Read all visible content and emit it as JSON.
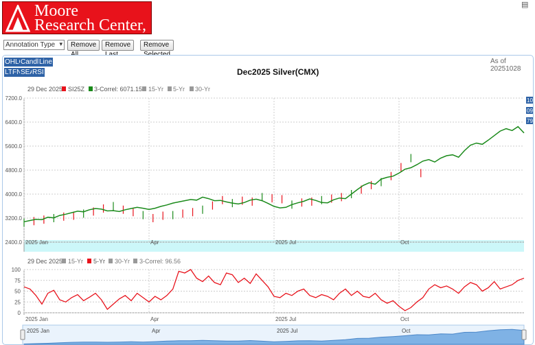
{
  "header": {
    "logo": {
      "line1": "Moore",
      "line2": "Research Center, Inc."
    }
  },
  "controls": {
    "annotation_select": "Annotation Type",
    "remove_all": "Remove All",
    "remove_last": "Remove Last",
    "remove_selected": "Remove Selected"
  },
  "chart_type_buttons": [
    "OHLC",
    "Candle",
    "Line",
    "LT",
    "FN",
    "SEA",
    "RSI"
  ],
  "as_of": "As of 20251028",
  "right_badges": [
    "10",
    "09",
    "79"
  ],
  "chart_data": [
    {
      "type": "line",
      "title": "Dec2025 Silver(CMX)",
      "legend": [
        "29 Dec 2025",
        "SI25Z",
        "3-Correl: 6071.15",
        "15-Yr",
        "5-Yr",
        "30-Yr"
      ],
      "legend_colors": {
        "SI25Z": "#e8121b",
        "3-Correl": "#1a8a1a",
        "15-Yr": "#999999",
        "5-Yr": "#999999",
        "30-Yr": "#999999"
      },
      "y_ticks": [
        "7200.0",
        "6400.0",
        "5600.0",
        "4800.0",
        "4000.0",
        "3200.0",
        "2400.0"
      ],
      "ylim": [
        2400,
        7200
      ],
      "x_labels": [
        "2025 Jan",
        "Apr",
        "2025 Jul",
        "Oct"
      ],
      "series": [
        {
          "name": "3-Correl",
          "x": [
            0,
            3,
            6,
            9,
            12,
            15,
            18,
            21,
            24,
            27,
            30,
            33,
            36,
            39,
            42,
            45,
            48,
            51,
            54,
            57,
            60,
            63,
            66,
            69,
            72,
            75,
            78,
            81,
            84,
            87,
            90,
            93,
            96,
            99,
            102,
            105,
            108,
            111,
            114,
            117,
            120,
            123,
            126,
            129,
            132,
            135,
            138,
            141,
            144,
            147,
            150,
            153,
            156,
            159,
            162,
            165,
            168,
            171,
            174,
            177,
            180,
            183,
            186,
            189,
            192,
            195,
            198,
            201,
            204,
            207,
            210,
            213,
            216,
            219,
            222,
            225,
            228,
            231,
            234,
            237,
            240,
            243,
            246,
            249,
            252
          ],
          "values": [
            3080,
            3120,
            3160,
            3150,
            3230,
            3210,
            3290,
            3330,
            3380,
            3430,
            3410,
            3480,
            3520,
            3500,
            3440,
            3450,
            3420,
            3480,
            3520,
            3560,
            3530,
            3490,
            3530,
            3590,
            3640,
            3700,
            3740,
            3780,
            3820,
            3800,
            3900,
            3850,
            3780,
            3790,
            3740,
            3700,
            3670,
            3720,
            3800,
            3830,
            3780,
            3690,
            3590,
            3540,
            3560,
            3650,
            3710,
            3760,
            3840,
            3790,
            3720,
            3710,
            3810,
            3870,
            3850,
            4000,
            4150,
            4290,
            4380,
            4330,
            4500,
            4560,
            4600,
            4700,
            4830,
            4880,
            4980,
            5100,
            5150,
            5070,
            5200,
            5280,
            5310,
            5230,
            5450,
            5630,
            5700,
            5660,
            5800,
            5950,
            6100,
            6180,
            6120,
            6250,
            6040
          ]
        },
        {
          "name": "SI25Z",
          "x": [
            0,
            5,
            10,
            15,
            20,
            25,
            30,
            35,
            40,
            45,
            50,
            55,
            60,
            65,
            70,
            75,
            80,
            85,
            90,
            95,
            100,
            105,
            110,
            115,
            120,
            125,
            130,
            135,
            140,
            145,
            150,
            155,
            160,
            165,
            170,
            175,
            180,
            185,
            190,
            195,
            200
          ],
          "values": [
            3050,
            3100,
            3150,
            3200,
            3250,
            3280,
            3350,
            3420,
            3520,
            3600,
            3480,
            3400,
            3300,
            3200,
            3280,
            3300,
            3350,
            3400,
            3480,
            3620,
            3800,
            3700,
            3780,
            3750,
            3900,
            3860,
            3830,
            3650,
            3720,
            3750,
            3800,
            3850,
            3900,
            4000,
            4150,
            4300,
            4400,
            4600,
            4900,
            5200,
            4700
          ]
        }
      ]
    },
    {
      "type": "line",
      "legend": [
        "29 Dec 2025",
        "15-Yr",
        "5-Yr",
        "30-Yr",
        "3-Correl: 96.56"
      ],
      "legend_colors": {
        "15-Yr": "#999999",
        "5-Yr": "#e8121b",
        "30-Yr": "#999999",
        "3-Correl": "#999999"
      },
      "y_ticks": [
        "100",
        "75",
        "50",
        "25",
        "0"
      ],
      "ylim": [
        0,
        100
      ],
      "x_labels": [
        "2025 Jan",
        "Apr",
        "2025 Jul",
        "Oct"
      ],
      "series": [
        {
          "name": "5-Yr",
          "x": [
            0,
            3,
            6,
            9,
            12,
            15,
            18,
            21,
            24,
            27,
            30,
            33,
            36,
            39,
            42,
            45,
            48,
            51,
            54,
            57,
            60,
            63,
            66,
            69,
            72,
            75,
            78,
            81,
            84,
            87,
            90,
            93,
            96,
            99,
            102,
            105,
            108,
            111,
            114,
            117,
            120,
            123,
            126,
            129,
            132,
            135,
            138,
            141,
            144,
            147,
            150,
            153,
            156,
            159,
            162,
            165,
            168,
            171,
            174,
            177,
            180,
            183,
            186,
            189,
            192,
            195,
            198,
            201,
            204,
            207,
            210,
            213,
            216,
            219,
            222,
            225,
            228,
            231,
            234,
            237,
            240,
            243,
            246,
            249,
            252
          ],
          "values": [
            60,
            55,
            40,
            20,
            45,
            52,
            30,
            25,
            35,
            42,
            28,
            36,
            45,
            30,
            8,
            20,
            32,
            40,
            28,
            45,
            35,
            25,
            38,
            30,
            40,
            55,
            96,
            92,
            100,
            80,
            72,
            85,
            70,
            65,
            92,
            88,
            70,
            80,
            68,
            90,
            75,
            60,
            38,
            35,
            45,
            40,
            50,
            55,
            40,
            35,
            42,
            38,
            30,
            45,
            55,
            40,
            50,
            38,
            35,
            45,
            30,
            22,
            28,
            15,
            5,
            12,
            25,
            35,
            55,
            65,
            58,
            62,
            55,
            45,
            60,
            70,
            65,
            50,
            58,
            72,
            55,
            60,
            65,
            75,
            80
          ]
        }
      ]
    }
  ],
  "navigator": {
    "x_labels": [
      "2025 Jan",
      "Apr",
      "2025 Jul",
      "Oct"
    ],
    "values": [
      3080,
      3150,
      3230,
      3330,
      3430,
      3480,
      3500,
      3450,
      3480,
      3560,
      3490,
      3590,
      3700,
      3780,
      3800,
      3850,
      3790,
      3700,
      3720,
      3830,
      3690,
      3540,
      3650,
      3760,
      3790,
      3710,
      3870,
      4000,
      4290,
      4330,
      4560,
      4700,
      4880,
      5100,
      5070,
      5280,
      5230,
      5630,
      5660,
      5950,
      6180,
      6250,
      6040
    ]
  }
}
